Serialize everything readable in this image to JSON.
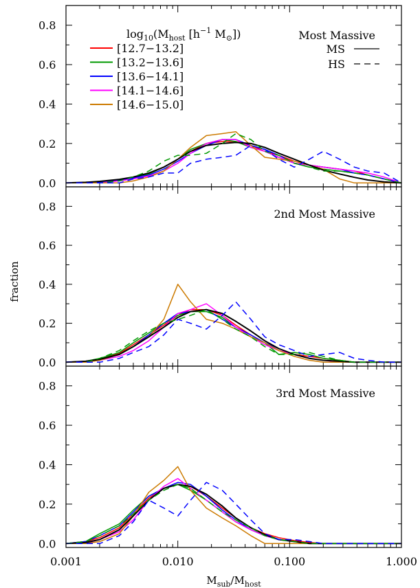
{
  "chart_data": {
    "type": "line",
    "x_scale": "log",
    "xlim": [
      0.001,
      1.0
    ],
    "ylim": [
      -0.02,
      0.9
    ],
    "xlabel": "M_sub/M_host",
    "xlabel_main": "M",
    "xlabel_sub1": "sub",
    "xlabel_mid": "/M",
    "xlabel_sub2": "host",
    "ylabel": "fraction",
    "x_ticks": [
      0.001,
      0.01,
      0.1,
      1.0
    ],
    "x_tick_labels": [
      "0.001",
      "0.010",
      "0.100",
      "1.000"
    ],
    "y_ticks": [
      0.0,
      0.2,
      0.4,
      0.6,
      0.8
    ],
    "y_tick_labels": [
      "0.0",
      "0.2",
      "0.4",
      "0.6",
      "0.8"
    ],
    "legend": {
      "title": "log10(Mhost [h^-1 M_sun])",
      "title_parts": {
        "log": "log",
        "log_sub": "10",
        "open": "(M",
        "host_sub": "host",
        "bracket": " [h",
        "exp": "−1",
        "unit": " M",
        "sun": "⊙",
        "close": "])"
      },
      "entries": [
        "[12.7−13.2]",
        "[13.2−13.6]",
        "[13.6−14.1]",
        "[14.1−14.6]",
        "[14.6−15.0]"
      ],
      "entry_colors": [
        "#ff0000",
        "#009900",
        "#0000ff",
        "#ff00ff",
        "#cc7a00"
      ],
      "style_entries": [
        "MS",
        "HS"
      ],
      "placement": "top-left"
    },
    "x": [
      0.001,
      0.0015,
      0.002,
      0.003,
      0.004,
      0.0055,
      0.0075,
      0.01,
      0.013,
      0.018,
      0.025,
      0.033,
      0.045,
      0.06,
      0.08,
      0.11,
      0.15,
      0.2,
      0.28,
      0.38,
      0.5,
      0.7,
      1.0
    ],
    "panels": [
      {
        "label": "Most Massive",
        "series": [
          {
            "name": "[12.7−13.2]",
            "color": "#ff0000",
            "style": "solid",
            "values": [
              0.0,
              0.0,
              0.005,
              0.015,
              0.025,
              0.045,
              0.08,
              0.12,
              0.16,
              0.2,
              0.21,
              0.21,
              0.19,
              0.16,
              0.14,
              0.11,
              0.09,
              0.08,
              0.07,
              0.06,
              0.04,
              0.02,
              0.0
            ]
          },
          {
            "name": "[13.2−13.6]",
            "color": "#009900",
            "style": "solid",
            "values": [
              0.0,
              0.0,
              0.005,
              0.015,
              0.025,
              0.045,
              0.08,
              0.12,
              0.17,
              0.2,
              0.22,
              0.21,
              0.18,
              0.16,
              0.13,
              0.1,
              0.08,
              0.07,
              0.06,
              0.05,
              0.04,
              0.02,
              0.0
            ]
          },
          {
            "name": "[13.6−14.1]",
            "color": "#0000ff",
            "style": "solid",
            "values": [
              0.0,
              0.0,
              0.005,
              0.015,
              0.025,
              0.04,
              0.07,
              0.11,
              0.15,
              0.19,
              0.22,
              0.22,
              0.19,
              0.17,
              0.14,
              0.1,
              0.09,
              0.08,
              0.07,
              0.05,
              0.04,
              0.02,
              0.0
            ]
          },
          {
            "name": "[14.1−14.6]",
            "color": "#ff00ff",
            "style": "solid",
            "values": [
              0.0,
              0.0,
              0.0,
              0.01,
              0.02,
              0.035,
              0.06,
              0.1,
              0.15,
              0.2,
              0.22,
              0.22,
              0.18,
              0.16,
              0.13,
              0.1,
              0.09,
              0.08,
              0.07,
              0.06,
              0.05,
              0.03,
              0.0
            ]
          },
          {
            "name": "[14.6−15.0]",
            "color": "#cc7a00",
            "style": "solid",
            "values": [
              0.0,
              0.0,
              0.0,
              0.0,
              0.01,
              0.03,
              0.06,
              0.12,
              0.18,
              0.24,
              0.25,
              0.26,
              0.19,
              0.13,
              0.12,
              0.11,
              0.09,
              0.07,
              0.02,
              0.0,
              0.0,
              0.0,
              0.0
            ]
          },
          {
            "name": "MS",
            "color": "#000000",
            "style": "solid",
            "values": [
              0.0,
              0.003,
              0.008,
              0.018,
              0.03,
              0.05,
              0.08,
              0.12,
              0.16,
              0.19,
              0.2,
              0.205,
              0.2,
              0.18,
              0.15,
              0.12,
              0.09,
              0.065,
              0.045,
              0.028,
              0.015,
              0.005,
              0.0
            ]
          },
          {
            "name": "HS (green)",
            "color": "#009900",
            "style": "dashed",
            "values": [
              0.0,
              0.0,
              0.0,
              0.01,
              0.03,
              0.06,
              0.11,
              0.14,
              0.14,
              0.15,
              0.2,
              0.25,
              0.22,
              0.16,
              0.14,
              0.1,
              0.08,
              0.06,
              0.06,
              0.05,
              0.04,
              0.02,
              0.0
            ]
          },
          {
            "name": "HS (blue)",
            "color": "#0000ff",
            "style": "dashed",
            "values": [
              0.0,
              0.0,
              0.0,
              0.0,
              0.02,
              0.03,
              0.05,
              0.05,
              0.1,
              0.12,
              0.13,
              0.14,
              0.19,
              0.17,
              0.12,
              0.08,
              0.12,
              0.16,
              0.12,
              0.08,
              0.06,
              0.05,
              0.0
            ]
          }
        ]
      },
      {
        "label": "2nd Most Massive",
        "series": [
          {
            "name": "[12.7−13.2]",
            "color": "#ff0000",
            "style": "solid",
            "values": [
              0.0,
              0.005,
              0.015,
              0.045,
              0.09,
              0.14,
              0.19,
              0.24,
              0.27,
              0.27,
              0.24,
              0.19,
              0.14,
              0.1,
              0.06,
              0.04,
              0.03,
              0.02,
              0.01,
              0.0,
              0.0,
              0.0,
              0.0
            ]
          },
          {
            "name": "[13.2−13.6]",
            "color": "#009900",
            "style": "solid",
            "values": [
              0.0,
              0.005,
              0.02,
              0.05,
              0.1,
              0.15,
              0.2,
              0.24,
              0.26,
              0.26,
              0.23,
              0.18,
              0.13,
              0.1,
              0.04,
              0.05,
              0.04,
              0.02,
              0.01,
              0.0,
              0.0,
              0.0,
              0.0
            ]
          },
          {
            "name": "[13.6−14.1]",
            "color": "#0000ff",
            "style": "solid",
            "values": [
              0.0,
              0.005,
              0.01,
              0.04,
              0.08,
              0.14,
              0.2,
              0.25,
              0.26,
              0.27,
              0.22,
              0.18,
              0.14,
              0.1,
              0.07,
              0.04,
              0.02,
              0.01,
              0.005,
              0.0,
              0.0,
              0.0,
              0.0
            ]
          },
          {
            "name": "[14.1−14.6]",
            "color": "#ff00ff",
            "style": "solid",
            "values": [
              0.0,
              0.0,
              0.01,
              0.03,
              0.06,
              0.11,
              0.18,
              0.25,
              0.27,
              0.3,
              0.24,
              0.18,
              0.13,
              0.09,
              0.06,
              0.04,
              0.02,
              0.01,
              0.0,
              0.0,
              0.0,
              0.0,
              0.0
            ]
          },
          {
            "name": "[14.6−15.0]",
            "color": "#cc7a00",
            "style": "solid",
            "values": [
              0.0,
              0.0,
              0.01,
              0.04,
              0.08,
              0.13,
              0.22,
              0.4,
              0.31,
              0.22,
              0.2,
              0.17,
              0.13,
              0.1,
              0.06,
              0.03,
              0.01,
              0.0,
              0.0,
              0.0,
              0.0,
              0.0,
              0.0
            ]
          },
          {
            "name": "MS",
            "color": "#000000",
            "style": "solid",
            "values": [
              0.0,
              0.005,
              0.015,
              0.04,
              0.08,
              0.13,
              0.18,
              0.23,
              0.26,
              0.27,
              0.25,
              0.21,
              0.16,
              0.11,
              0.07,
              0.04,
              0.02,
              0.01,
              0.005,
              0.0,
              0.0,
              0.0,
              0.0
            ]
          },
          {
            "name": "HS (green)",
            "color": "#009900",
            "style": "dashed",
            "values": [
              0.0,
              0.0,
              0.02,
              0.06,
              0.11,
              0.16,
              0.2,
              0.22,
              0.24,
              0.27,
              0.22,
              0.17,
              0.13,
              0.08,
              0.04,
              0.04,
              0.05,
              0.03,
              0.01,
              0.0,
              0.0,
              0.0,
              0.0
            ]
          },
          {
            "name": "HS (blue)",
            "color": "#0000ff",
            "style": "dashed",
            "values": [
              0.0,
              0.0,
              0.0,
              0.02,
              0.05,
              0.08,
              0.14,
              0.22,
              0.2,
              0.17,
              0.24,
              0.31,
              0.22,
              0.13,
              0.09,
              0.06,
              0.03,
              0.04,
              0.05,
              0.02,
              0.01,
              0.0,
              0.0
            ]
          }
        ]
      },
      {
        "label": "3rd Most Massive",
        "series": [
          {
            "name": "[12.7−13.2]",
            "color": "#ff0000",
            "style": "solid",
            "values": [
              0.0,
              0.01,
              0.03,
              0.08,
              0.15,
              0.23,
              0.28,
              0.3,
              0.29,
              0.24,
              0.18,
              0.13,
              0.08,
              0.05,
              0.03,
              0.015,
              0.005,
              0.0,
              0.0,
              0.0,
              0.0,
              0.0,
              0.0
            ]
          },
          {
            "name": "[13.2−13.6]",
            "color": "#009900",
            "style": "solid",
            "values": [
              0.0,
              0.01,
              0.05,
              0.1,
              0.17,
              0.24,
              0.28,
              0.3,
              0.27,
              0.22,
              0.16,
              0.11,
              0.07,
              0.04,
              0.02,
              0.01,
              0.0,
              0.0,
              0.0,
              0.0,
              0.0,
              0.0,
              0.0
            ]
          },
          {
            "name": "[13.6−14.1]",
            "color": "#0000ff",
            "style": "solid",
            "values": [
              0.0,
              0.01,
              0.04,
              0.09,
              0.16,
              0.24,
              0.28,
              0.31,
              0.3,
              0.24,
              0.17,
              0.12,
              0.07,
              0.04,
              0.02,
              0.01,
              0.0,
              0.0,
              0.0,
              0.0,
              0.0,
              0.0,
              0.0
            ]
          },
          {
            "name": "[14.1−14.6]",
            "color": "#ff00ff",
            "style": "solid",
            "values": [
              0.0,
              0.0,
              0.02,
              0.06,
              0.12,
              0.22,
              0.29,
              0.33,
              0.28,
              0.22,
              0.16,
              0.11,
              0.07,
              0.04,
              0.02,
              0.01,
              0.0,
              0.0,
              0.0,
              0.0,
              0.0,
              0.0,
              0.0
            ]
          },
          {
            "name": "[14.6−15.0]",
            "color": "#cc7a00",
            "style": "solid",
            "values": [
              0.0,
              0.0,
              0.01,
              0.05,
              0.14,
              0.26,
              0.32,
              0.39,
              0.27,
              0.18,
              0.13,
              0.09,
              0.04,
              0.0,
              0.0,
              0.0,
              0.0,
              0.0,
              0.0,
              0.0,
              0.0,
              0.0,
              0.0
            ]
          },
          {
            "name": "MS",
            "color": "#000000",
            "style": "solid",
            "values": [
              0.0,
              0.005,
              0.02,
              0.07,
              0.14,
              0.22,
              0.28,
              0.3,
              0.29,
              0.25,
              0.19,
              0.13,
              0.08,
              0.045,
              0.02,
              0.01,
              0.0,
              0.0,
              0.0,
              0.0,
              0.0,
              0.0,
              0.0
            ]
          },
          {
            "name": "HS (green)",
            "color": "#009900",
            "style": "dashed",
            "values": [
              0.0,
              0.01,
              0.04,
              0.09,
              0.15,
              0.22,
              0.27,
              0.3,
              0.28,
              0.22,
              0.16,
              0.12,
              0.08,
              0.04,
              0.02,
              0.01,
              0.0,
              0.0,
              0.0,
              0.0,
              0.0,
              0.0,
              0.0
            ]
          },
          {
            "name": "HS (blue)",
            "color": "#0000ff",
            "style": "dashed",
            "values": [
              0.0,
              0.0,
              0.0,
              0.04,
              0.11,
              0.22,
              0.18,
              0.14,
              0.22,
              0.31,
              0.27,
              0.2,
              0.12,
              0.05,
              0.02,
              0.02,
              0.01,
              0.0,
              0.0,
              0.0,
              0.0,
              0.0,
              0.0
            ]
          }
        ]
      }
    ]
  }
}
